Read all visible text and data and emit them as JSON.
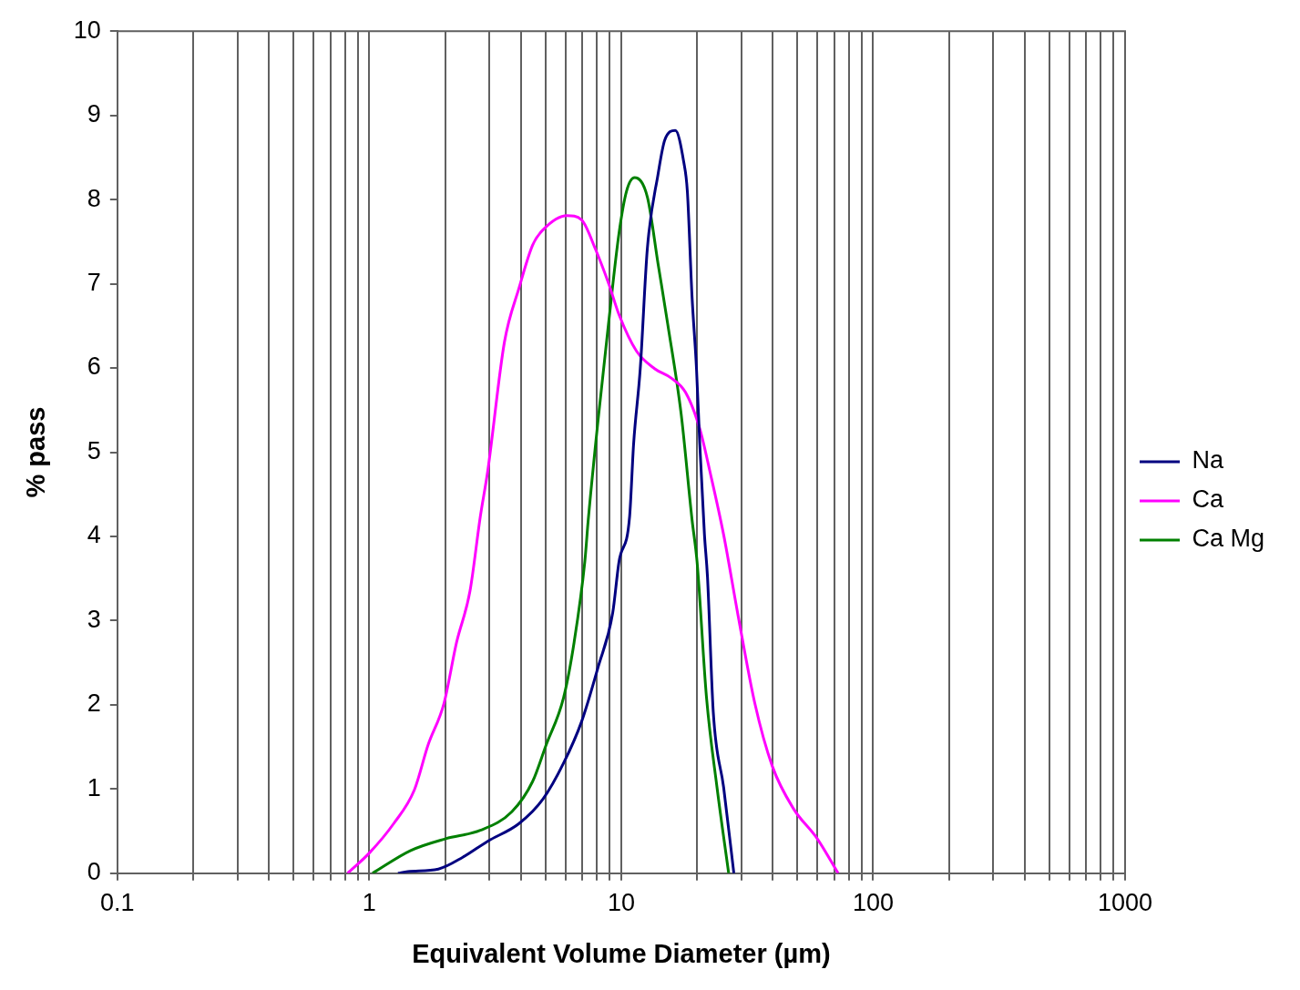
{
  "chart_data": {
    "type": "line",
    "xlabel": "Equivalent Volume Diameter (µm)",
    "ylabel": "% pass",
    "log": "x",
    "xlim": [
      0.1,
      1000
    ],
    "ylim": [
      0,
      10
    ],
    "xticks": [
      0.1,
      {
        "value": 0.2,
        "label": null
      },
      {
        "value": 0.3,
        "label": null
      },
      {
        "value": 0.4,
        "label": null
      },
      {
        "value": 0.5,
        "label": null
      },
      {
        "value": 0.6,
        "label": null
      },
      {
        "value": 0.7,
        "label": null
      },
      {
        "value": 0.8,
        "label": null
      },
      {
        "value": 0.9,
        "label": null
      },
      1,
      {
        "value": 2,
        "label": null
      },
      {
        "value": 3,
        "label": null
      },
      {
        "value": 4,
        "label": null
      },
      {
        "value": 5,
        "label": null
      },
      {
        "value": 6,
        "label": null
      },
      {
        "value": 7,
        "label": null
      },
      {
        "value": 8,
        "label": null
      },
      {
        "value": 9,
        "label": null
      },
      10,
      {
        "value": 20,
        "label": null
      },
      {
        "value": 30,
        "label": null
      },
      {
        "value": 40,
        "label": null
      },
      {
        "value": 50,
        "label": null
      },
      {
        "value": 60,
        "label": null
      },
      {
        "value": 70,
        "label": null
      },
      {
        "value": 80,
        "label": null
      },
      {
        "value": 90,
        "label": null
      },
      100,
      {
        "value": 200,
        "label": null
      },
      {
        "value": 300,
        "label": null
      },
      {
        "value": 400,
        "label": null
      },
      {
        "value": 500,
        "label": null
      },
      {
        "value": 600,
        "label": null
      },
      {
        "value": 700,
        "label": null
      },
      {
        "value": 800,
        "label": null
      },
      {
        "value": 900,
        "label": null
      },
      1000
    ],
    "yticks": [
      0,
      1,
      2,
      3,
      4,
      5,
      6,
      7,
      8,
      9,
      10
    ],
    "grid": "x",
    "legend": "right",
    "marker": "none",
    "line_style": "solid",
    "series": [
      {
        "name": "Na",
        "color": "#000080",
        "x": [
          1.3,
          1.42,
          1.88,
          2.35,
          2.95,
          3.93,
          4.89,
          5.91,
          6.96,
          8.1,
          9.25,
          9.8,
          10.8,
          11.2,
          11.9,
          12.7,
          14.0,
          14.9,
          16.4,
          17.7,
          18.3,
          19.1,
          19.9,
          20.5,
          21.4,
          22.0,
          23.2,
          25.5,
          28.0
        ],
        "values": [
          0,
          0.02,
          0.05,
          0.19,
          0.38,
          0.59,
          0.88,
          1.31,
          1.8,
          2.45,
          3.09,
          3.7,
          4.24,
          5.1,
          5.99,
          7.42,
          8.3,
          8.71,
          8.82,
          8.45,
          8.1,
          6.85,
          5.99,
          5.1,
          4.02,
          3.52,
          1.91,
          1.02,
          0
        ]
      },
      {
        "name": "Ca",
        "color": "#ff00ff",
        "x": [
          0.82,
          1.0,
          1.25,
          1.51,
          1.71,
          1.98,
          2.22,
          2.51,
          2.76,
          2.95,
          3.44,
          3.93,
          4.45,
          4.89,
          6.09,
          6.96,
          7.88,
          8.92,
          9.81,
          11.5,
          13.6,
          15.8,
          18.0,
          20.5,
          22.5,
          25.5,
          29.1,
          33.9,
          39.8,
          48.2,
          60.0,
          72.6
        ],
        "values": [
          0,
          0.24,
          0.59,
          0.99,
          1.52,
          2.02,
          2.74,
          3.35,
          4.24,
          4.77,
          6.31,
          6.95,
          7.46,
          7.64,
          7.81,
          7.76,
          7.42,
          7.0,
          6.63,
          6.2,
          5.99,
          5.88,
          5.71,
          5.28,
          4.77,
          4.02,
          3.06,
          2.02,
          1.27,
          0.77,
          0.41,
          0
        ]
      },
      {
        "name": "Ca Mg",
        "color": "#008000",
        "x": [
          1.03,
          1.46,
          2.01,
          2.76,
          3.68,
          4.45,
          5.03,
          5.91,
          6.5,
          7.17,
          7.4,
          8.1,
          8.9,
          9.8,
          10.5,
          11.3,
          12.7,
          14.0,
          15.3,
          17.3,
          19.1,
          20.0,
          21.8,
          24.0,
          26.7
        ],
        "values": [
          0,
          0.27,
          0.41,
          0.51,
          0.73,
          1.09,
          1.52,
          2.09,
          2.74,
          3.7,
          4.2,
          5.39,
          6.52,
          7.6,
          8.1,
          8.26,
          8.03,
          7.24,
          6.52,
          5.45,
          4.2,
          3.7,
          2.09,
          1.02,
          0
        ]
      }
    ]
  }
}
